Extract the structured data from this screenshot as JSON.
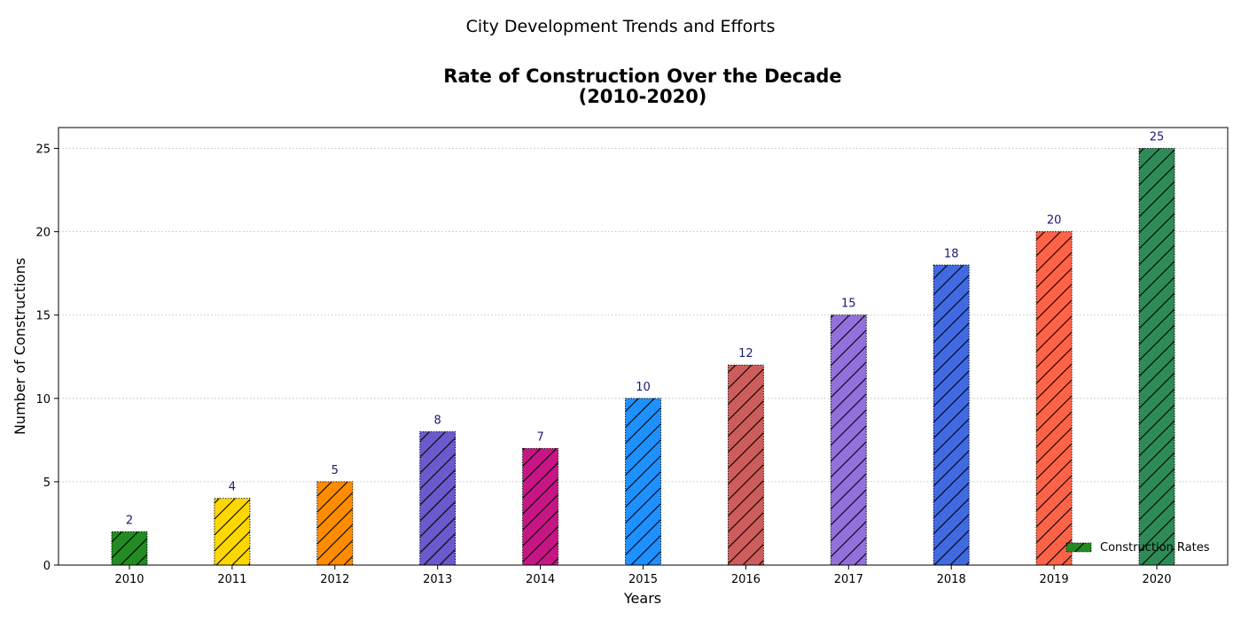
{
  "figure": {
    "suptitle": "City Development Trends and Efforts"
  },
  "chart_data": {
    "type": "bar",
    "title_line1": "Rate of Construction Over the Decade",
    "title_line2": "(2010-2020)",
    "xlabel": "Years",
    "ylabel": "Number of Constructions",
    "categories": [
      "2010",
      "2011",
      "2012",
      "2013",
      "2014",
      "2015",
      "2016",
      "2017",
      "2018",
      "2019",
      "2020"
    ],
    "values": [
      2,
      4,
      5,
      8,
      7,
      10,
      12,
      15,
      18,
      20,
      25
    ],
    "bar_colors": [
      "#228B22",
      "#FFD700",
      "#FF8C00",
      "#6A5ACD",
      "#C71585",
      "#1E90FF",
      "#CD5C5C",
      "#9370DB",
      "#4169E1",
      "#FF6347",
      "#2E8B57"
    ],
    "data_label_color": "#191970",
    "hatch": "/",
    "ylim": [
      0,
      26.25
    ],
    "yticks": [
      0,
      5,
      10,
      15,
      20,
      25
    ],
    "grid": "y-dotted",
    "legend": {
      "position": "lower-right",
      "entries": [
        {
          "label": "Construction Rates",
          "color": "#228B22"
        }
      ]
    }
  }
}
